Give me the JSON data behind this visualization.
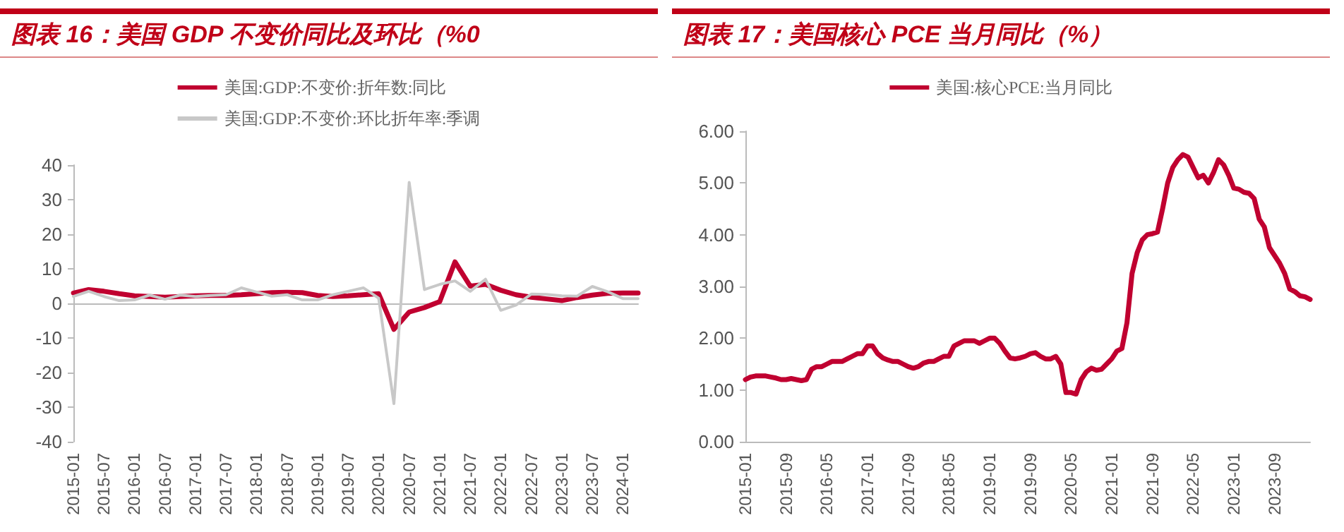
{
  "chart_data": [
    {
      "type": "line",
      "title": "图表 16：美国 GDP 不变价同比及环比（%0",
      "legend": "top",
      "marker": "none",
      "categories": [
        "2015-01",
        null,
        "2015-07",
        null,
        "2016-01",
        null,
        "2016-07",
        null,
        "2017-01",
        null,
        "2017-07",
        null,
        "2018-01",
        null,
        "2018-07",
        null,
        "2019-01",
        null,
        "2019-07",
        null,
        "2020-01",
        null,
        "2020-07",
        null,
        "2021-01",
        null,
        "2021-07",
        null,
        "2022-01",
        null,
        "2022-07",
        null,
        "2023-01",
        null,
        "2023-07",
        null,
        "2024-01",
        null
      ],
      "ylim": [
        -40,
        40
      ],
      "yticks": [
        -40,
        -30,
        -20,
        -10,
        0,
        10,
        20,
        30,
        40
      ],
      "series": [
        {
          "name": "美国:GDP:不变价:折年数:同比",
          "color": "#c00030",
          "values": [
            3.0,
            4.0,
            3.5,
            2.8,
            2.2,
            2.0,
            1.8,
            2.0,
            2.2,
            2.3,
            2.3,
            2.5,
            2.8,
            3.1,
            3.2,
            3.1,
            2.3,
            2.0,
            2.2,
            2.5,
            2.8,
            -7.5,
            -2.5,
            -1.2,
            0.5,
            12.0,
            5.0,
            5.5,
            3.8,
            2.5,
            1.8,
            1.3,
            0.8,
            1.7,
            2.4,
            2.9,
            3.0,
            3.0
          ]
        },
        {
          "name": "美国:GDP:不变价:环比折年率:季调",
          "color": "#c8c8c8",
          "values": [
            2.0,
            3.5,
            2.0,
            0.8,
            1.0,
            2.4,
            1.2,
            2.4,
            2.0,
            2.3,
            2.5,
            4.5,
            3.3,
            2.1,
            2.5,
            1.0,
            1.0,
            2.5,
            3.5,
            4.5,
            1.5,
            -29,
            35,
            4.0,
            5.5,
            6.5,
            3.5,
            7.0,
            -2.0,
            -0.5,
            2.7,
            2.6,
            2.2,
            2.1,
            4.9,
            3.4,
            1.4,
            1.4
          ]
        }
      ]
    },
    {
      "type": "line",
      "title": "图表 17：美国核心 PCE 当月同比（%）",
      "legend": "top",
      "marker": "none",
      "categories": [
        "2015-01",
        null,
        null,
        null,
        null,
        null,
        null,
        null,
        "2015-09",
        null,
        null,
        null,
        null,
        null,
        null,
        null,
        "2016-05",
        null,
        null,
        null,
        null,
        null,
        null,
        null,
        "2017-01",
        null,
        null,
        null,
        null,
        null,
        null,
        null,
        "2017-09",
        null,
        null,
        null,
        null,
        null,
        null,
        null,
        "2018-05",
        null,
        null,
        null,
        null,
        null,
        null,
        null,
        "2019-01",
        null,
        null,
        null,
        null,
        null,
        null,
        null,
        "2019-09",
        null,
        null,
        null,
        null,
        null,
        null,
        null,
        "2020-05",
        null,
        null,
        null,
        null,
        null,
        null,
        null,
        "2021-01",
        null,
        null,
        null,
        null,
        null,
        null,
        null,
        "2021-09",
        null,
        null,
        null,
        null,
        null,
        null,
        null,
        "2022-05",
        null,
        null,
        null,
        null,
        null,
        null,
        null,
        "2023-01",
        null,
        null,
        null,
        null,
        null,
        null,
        null,
        "2023-09",
        null,
        null,
        null,
        null,
        null,
        null,
        null
      ],
      "ylim": [
        0,
        6
      ],
      "yticks": [
        {
          "value": 0,
          "label": "0.00"
        },
        {
          "value": 1,
          "label": "1.00"
        },
        {
          "value": 2,
          "label": "2.00"
        },
        {
          "value": 3,
          "label": "3.00"
        },
        {
          "value": 4,
          "label": "4.00"
        },
        {
          "value": 5,
          "label": "5.00"
        },
        {
          "value": 6,
          "label": "6.00"
        }
      ],
      "series": [
        {
          "name": "美国:核心PCE:当月同比",
          "color": "#c00030",
          "values": [
            1.2,
            1.25,
            1.27,
            1.27,
            1.27,
            1.25,
            1.23,
            1.2,
            1.2,
            1.22,
            1.2,
            1.18,
            1.2,
            1.4,
            1.45,
            1.45,
            1.5,
            1.55,
            1.55,
            1.55,
            1.6,
            1.65,
            1.7,
            1.7,
            1.85,
            1.85,
            1.7,
            1.62,
            1.58,
            1.55,
            1.55,
            1.5,
            1.45,
            1.42,
            1.45,
            1.52,
            1.55,
            1.55,
            1.6,
            1.65,
            1.65,
            1.85,
            1.9,
            1.95,
            1.95,
            1.95,
            1.9,
            1.95,
            2.0,
            2.0,
            1.9,
            1.75,
            1.62,
            1.6,
            1.62,
            1.65,
            1.7,
            1.72,
            1.65,
            1.6,
            1.6,
            1.65,
            1.5,
            0.95,
            0.95,
            0.92,
            1.2,
            1.35,
            1.42,
            1.38,
            1.4,
            1.5,
            1.6,
            1.75,
            1.8,
            2.3,
            3.25,
            3.65,
            3.9,
            4.0,
            4.02,
            4.05,
            4.5,
            5.0,
            5.3,
            5.45,
            5.55,
            5.5,
            5.3,
            5.1,
            5.15,
            5.0,
            5.2,
            5.45,
            5.35,
            5.15,
            4.9,
            4.88,
            4.82,
            4.8,
            4.7,
            4.3,
            4.15,
            3.75,
            3.6,
            3.45,
            3.25,
            2.95,
            2.9,
            2.82,
            2.8,
            2.75
          ]
        }
      ]
    }
  ]
}
